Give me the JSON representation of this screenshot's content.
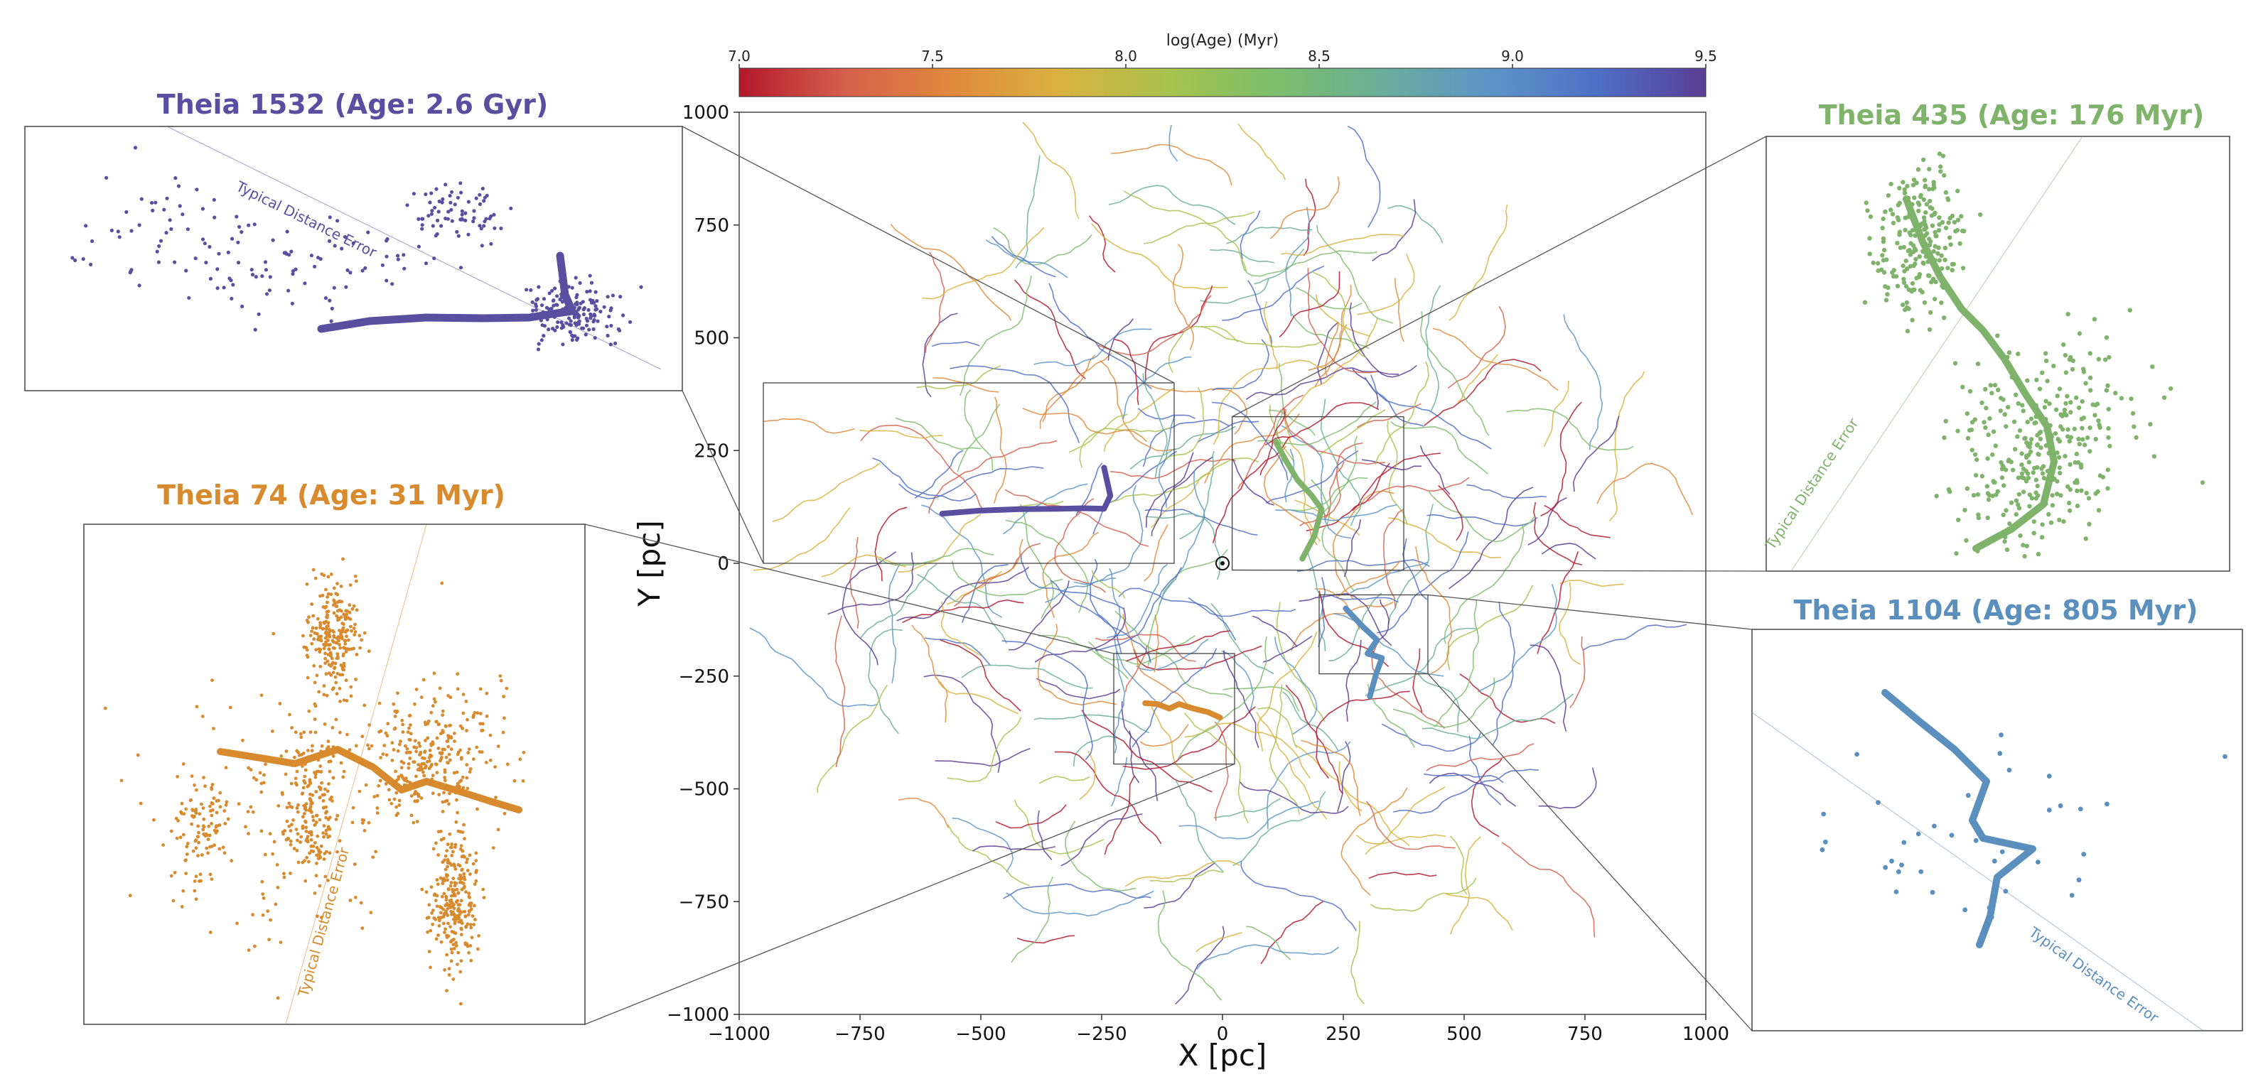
{
  "figure": {
    "colorbar": {
      "label": "log(Age) (Myr)",
      "range": [
        7.0,
        9.5
      ],
      "ticks": [
        "7.0",
        "7.5",
        "8.0",
        "8.5",
        "9.0",
        "9.5"
      ],
      "colormap": [
        "#b2182b",
        "#d6604d",
        "#e08a3c",
        "#d9b340",
        "#a8c24e",
        "#7cbd6c",
        "#6aae9a",
        "#5c95c7",
        "#4f6fc6",
        "#5a3d95"
      ]
    }
  },
  "chart_data": [
    {
      "type": "line",
      "title": "",
      "xlabel": "X [pc]",
      "ylabel": "Y [pc]",
      "xlim": [
        -1000,
        1000
      ],
      "ylim": [
        -1000,
        1000
      ],
      "xticks": [
        "−1000",
        "−750",
        "−500",
        "−250",
        "0",
        "250",
        "500",
        "750",
        "1000"
      ],
      "yticks": [
        "1000",
        "750",
        "500",
        "250",
        "0",
        "−250",
        "−500",
        "−750",
        "−1000"
      ],
      "grid": false,
      "sun_marker": [
        0,
        0
      ],
      "background_strings": "several hundred thin curves colored by log(Age)",
      "highlighted_series": [
        {
          "name": "Theia 1532",
          "color": "#5a4ea1",
          "x": [
            -580,
            -500,
            -420,
            -340,
            -285,
            -245,
            -232,
            -245
          ],
          "y": [
            110,
            117,
            120,
            121,
            122,
            121,
            150,
            212
          ]
        },
        {
          "name": "Theia 435",
          "color": "#7fb26b",
          "x": [
            110,
            130,
            155,
            185,
            205,
            190,
            165
          ],
          "y": [
            270,
            230,
            185,
            150,
            120,
            60,
            10
          ]
        },
        {
          "name": "Theia 74",
          "color": "#d88a2e",
          "x": [
            -160,
            -135,
            -110,
            -90,
            -60,
            -30,
            -5
          ],
          "y": [
            -310,
            -312,
            -322,
            -312,
            -322,
            -330,
            -342
          ]
        },
        {
          "name": "Theia 1104",
          "color": "#5b8fbd",
          "x": [
            255,
            290,
            320,
            300,
            330,
            318,
            305
          ],
          "y": [
            -100,
            -140,
            -170,
            -200,
            -210,
            -245,
            -295
          ]
        }
      ],
      "inset_regions": [
        {
          "name": "Theia 1532",
          "x": [
            -950,
            -100
          ],
          "y": [
            0,
            400
          ]
        },
        {
          "name": "Theia 435",
          "x": [
            20,
            375
          ],
          "y": [
            -15,
            325
          ]
        },
        {
          "name": "Theia 74",
          "x": [
            -225,
            25
          ],
          "y": [
            -445,
            -200
          ]
        },
        {
          "name": "Theia 1104",
          "x": [
            200,
            425
          ],
          "y": [
            -245,
            -70
          ]
        }
      ]
    },
    {
      "type": "scatter",
      "title": "Theia 1532 (Age: 2.6 Gyr)",
      "color": "#5a4ea1",
      "annotation": "Typical Distance Error",
      "series": [
        {
          "name": "Theia 1532",
          "points": "members of Theia 1532; thick line is the fitted spine"
        }
      ]
    },
    {
      "type": "scatter",
      "title": "Theia 435 (Age: 176 Myr)",
      "color": "#7fb26b",
      "annotation": "Typical Distance Error",
      "series": [
        {
          "name": "Theia 435",
          "points": "members of Theia 435; thick line is the fitted spine"
        }
      ]
    },
    {
      "type": "scatter",
      "title": "Theia 74 (Age: 31 Myr)",
      "color": "#d88a2e",
      "annotation": "Typical Distance Error",
      "series": [
        {
          "name": "Theia 74",
          "points": "members of Theia 74; thick line is the fitted spine"
        }
      ]
    },
    {
      "type": "scatter",
      "title": "Theia 1104 (Age: 805 Myr)",
      "color": "#5b8fbd",
      "annotation": "Typical Distance Error",
      "series": [
        {
          "name": "Theia 1104",
          "points": "members of Theia 1104; thick line is the fitted spine"
        }
      ]
    }
  ]
}
